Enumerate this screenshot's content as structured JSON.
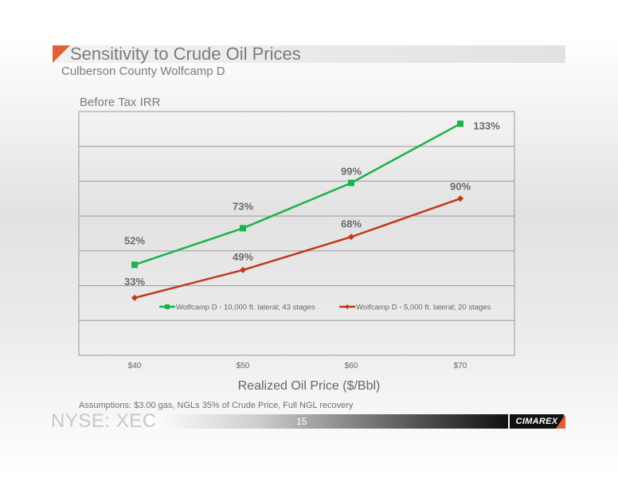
{
  "slide": {
    "title": "Sensitivity to Crude Oil Prices",
    "subtitle": "Culberson County Wolfcamp D",
    "assumptions": "Assumptions: $3.00 gas, NGLs 35% of Crude Price, Full NGL recovery",
    "footer_ticker": "NYSE: XEC",
    "page_number": "15",
    "logo_text": "CIMAREX",
    "accent_color": "#e0603a"
  },
  "chart_data": {
    "type": "line",
    "title": "Before Tax IRR",
    "xlabel": "Realized Oil Price ($/Bbl)",
    "ylabel": "",
    "categories": [
      "$40",
      "$50",
      "$60",
      "$70"
    ],
    "ylim": [
      0,
      140
    ],
    "grid": true,
    "legend_position": "inside-middle",
    "series": [
      {
        "name": "Wolfcamp D - 10,000 ft. lateral; 43 stages",
        "values": [
          52,
          73,
          99,
          133
        ],
        "labels": [
          "52%",
          "73%",
          "99%",
          "133%"
        ],
        "color": "#1db14b",
        "marker": "square"
      },
      {
        "name": "Wolfcamp D - 5,000 ft. lateral; 20 stages",
        "values": [
          33,
          49,
          68,
          90
        ],
        "labels": [
          "33%",
          "49%",
          "68%",
          "90%"
        ],
        "color": "#c0391b",
        "marker": "diamond"
      }
    ]
  }
}
